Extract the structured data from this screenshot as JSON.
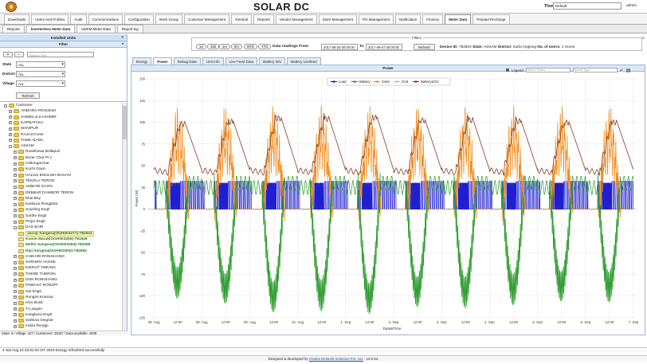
{
  "header": {
    "title": "SOLAR DC",
    "theme_label": "Theme",
    "theme_value": "Default",
    "user": "admin"
  },
  "menu": [
    "Downloads",
    "Users And Profiles",
    "Audit",
    "Communications",
    "Configuration",
    "Work Group",
    "Customer Management",
    "General",
    "Reports",
    "Vendor Management",
    "Store Management",
    "PO Management",
    "Notification",
    "Finance",
    "Meter Data",
    "Prepaid Recharge"
  ],
  "menu_active": 14,
  "subtabs": [
    "Reports",
    "Inverterless Meter Data",
    "UDFM Meter Data",
    "Report log"
  ],
  "subtab_active": 1,
  "left": {
    "installed_units": "Installed Units",
    "filter": "Filter",
    "search_placeholder": "Search Text",
    "state_label": "State",
    "state_value": "ALL",
    "district_label": "District",
    "district_value": "ALL",
    "village_label": "Village",
    "village_value": "ALL",
    "refresh": "Refresh",
    "footer": "State: 8 / Village: 427 / Customers: 33027 / Data available: 4209"
  },
  "tree": [
    {
      "lvl": 0,
      "exp": "-",
      "label": "Customer",
      "type": "folder"
    },
    {
      "lvl": 1,
      "exp": "+",
      "label": "ANDHRA PRADESH",
      "type": "folder"
    },
    {
      "lvl": 1,
      "exp": "+",
      "label": "JAMMU & KASHMIR",
      "type": "folder"
    },
    {
      "lvl": 1,
      "exp": "+",
      "label": "KARNATAKA",
      "type": "folder"
    },
    {
      "lvl": 1,
      "exp": "+",
      "label": "MANIPUR",
      "type": "folder"
    },
    {
      "lvl": 1,
      "exp": "+",
      "label": "RAJASTHAN",
      "type": "folder"
    },
    {
      "lvl": 1,
      "exp": "+",
      "label": "TAMIL NADU",
      "type": "folder"
    },
    {
      "lvl": 1,
      "exp": "-",
      "label": "ASSAM",
      "type": "folder"
    },
    {
      "lvl": 2,
      "exp": "+",
      "label": "Rowkhowa Bollapuri",
      "type": "folder"
    },
    {
      "lvl": 2,
      "exp": "+",
      "label": "Borar Char Pt 1",
      "type": "folder"
    },
    {
      "lvl": 2,
      "exp": "+",
      "label": "Hollongarchar",
      "type": "folder"
    },
    {
      "lvl": 2,
      "exp": "+",
      "label": "Kochi Gaon",
      "type": "folder"
    },
    {
      "lvl": 2,
      "exp": "+",
      "label": "HALDU ENGLISH BAGAN",
      "type": "folder"
    },
    {
      "lvl": 2,
      "exp": "+",
      "label": "TEKELA TERON",
      "type": "folder"
    },
    {
      "lvl": 2,
      "exp": "+",
      "label": "AMBARI GAON",
      "type": "folder"
    },
    {
      "lvl": 2,
      "exp": "+",
      "label": "DEBBAR DAWBOR TERON",
      "type": "folder"
    },
    {
      "lvl": 2,
      "exp": "+",
      "label": "Ekai Bey",
      "type": "folder"
    },
    {
      "lvl": 2,
      "exp": "+",
      "label": "Kanbura Rongphar",
      "type": "folder"
    },
    {
      "lvl": 2,
      "exp": "+",
      "label": "Soysling Engti",
      "type": "folder"
    },
    {
      "lvl": 2,
      "exp": "+",
      "label": "Sarthe Engti",
      "type": "folder"
    },
    {
      "lvl": 2,
      "exp": "+",
      "label": "Pinpo Engti",
      "type": "folder"
    },
    {
      "lvl": 2,
      "exp": "-",
      "label": "DAS BARI",
      "type": "folder"
    },
    {
      "lvl": 3,
      "exp": "",
      "label": "Jacop Sangma(OGH003277)-782623",
      "type": "leaf",
      "sel": true
    },
    {
      "lvl": 3,
      "exp": "",
      "label": "Komie Marak(OGH003285)-781849",
      "type": "leaf"
    },
    {
      "lvl": 3,
      "exp": "",
      "label": "Mellin Sangma(OGH003294)-782056",
      "type": "leaf"
    },
    {
      "lvl": 3,
      "exp": "",
      "label": "Nipi Sangma(OGH003300)-782584",
      "type": "leaf"
    },
    {
      "lvl": 2,
      "exp": "+",
      "label": "CHIKARI RONGHANG",
      "type": "folder"
    },
    {
      "lvl": 2,
      "exp": "+",
      "label": "SARHEN HANSE",
      "type": "folder"
    },
    {
      "lvl": 2,
      "exp": "+",
      "label": "DIKRUT TIMUNG",
      "type": "folder"
    },
    {
      "lvl": 2,
      "exp": "+",
      "label": "THERE THERON",
      "type": "folder"
    },
    {
      "lvl": 2,
      "exp": "+",
      "label": "DOK RONGHANG",
      "type": "folder"
    },
    {
      "lvl": 2,
      "exp": "+",
      "label": "PINKHAT RONGPI",
      "type": "folder"
    },
    {
      "lvl": 2,
      "exp": "+",
      "label": "Sar Engti",
      "type": "folder"
    },
    {
      "lvl": 2,
      "exp": "+",
      "label": "Rongmi Kramsa",
      "type": "folder"
    },
    {
      "lvl": 2,
      "exp": "+",
      "label": "Hizo Bosti",
      "type": "folder"
    },
    {
      "lvl": 2,
      "exp": "+",
      "label": "Ti Langso",
      "type": "folder"
    },
    {
      "lvl": 2,
      "exp": "+",
      "label": "Kangbura Engti",
      "type": "folder"
    },
    {
      "lvl": 2,
      "exp": "+",
      "label": "Sarbura Singnar",
      "type": "folder"
    },
    {
      "lvl": 2,
      "exp": "+",
      "label": "Indira Rongpi",
      "type": "folder"
    }
  ],
  "filters": {
    "legend": "Filters",
    "ranges": [
      "1d",
      "15d",
      "1m",
      "6m",
      "MTD",
      "YTD"
    ],
    "from_label": "Data readings From",
    "from_value": "2017-08-28 00:00:00",
    "to_label": "To",
    "to_value": "2017-09-07 00:00:00",
    "refresh": "Refresh",
    "device_label": "Device ID:",
    "device_value": "782623",
    "state_label": "State:",
    "state_value": "ASSAM",
    "district_label": "District:",
    "district_value": "Karbi Anglong",
    "users_label": "No. of Users:",
    "users_value": "1 Home"
  },
  "content_tabs": [
    "Energy",
    "Power",
    "Debug Data",
    "Unit Info",
    "Live Feed Data",
    "Battery Info",
    "Battery Livefeed"
  ],
  "content_tab_active": 1,
  "chart_header": "Power",
  "chart_controls": {
    "legend": "Legend",
    "select_series": "Select Series",
    "select_type": "Select Type"
  },
  "chart_data": {
    "type": "line",
    "ylabel": "Power (W)",
    "xlabel": "Date&Time",
    "ylim": [
      -125,
      150
    ],
    "yticks": [
      -125,
      -100,
      -75,
      -50,
      -25,
      0,
      25,
      50,
      75,
      100,
      125,
      150
    ],
    "xticks": [
      "28. Aug",
      "12:00",
      "29. Aug",
      "12:00",
      "30. Aug",
      "12:00",
      "31. Aug",
      "12:00",
      "1. Sep",
      "12:00",
      "2. Sep",
      "12:00",
      "3. Sep",
      "12:00",
      "4. Sep",
      "12:00",
      "5. Sep",
      "12:00",
      "6. Sep",
      "12:00",
      "7. Sep"
    ],
    "legend_placement": "top-center",
    "series": [
      {
        "name": "Load",
        "color": "#1f1fcf"
      },
      {
        "name": "Battery",
        "color": "#2a9a2a"
      },
      {
        "name": "Solar",
        "color": "#f08a1c"
      },
      {
        "name": "Grid",
        "color": "#e0a0c0"
      },
      {
        "name": "BatterySOC",
        "color": "#8b3a1a"
      }
    ]
  },
  "status": "Sat Aug 10 23:31:03 IST 2019 Energy refreshed successfully",
  "footer": {
    "prefix": "Designed & developed by ",
    "company": "Chakra Network Solutions Pvt. Ltd.",
    "suffix": " - v2.0.54."
  }
}
